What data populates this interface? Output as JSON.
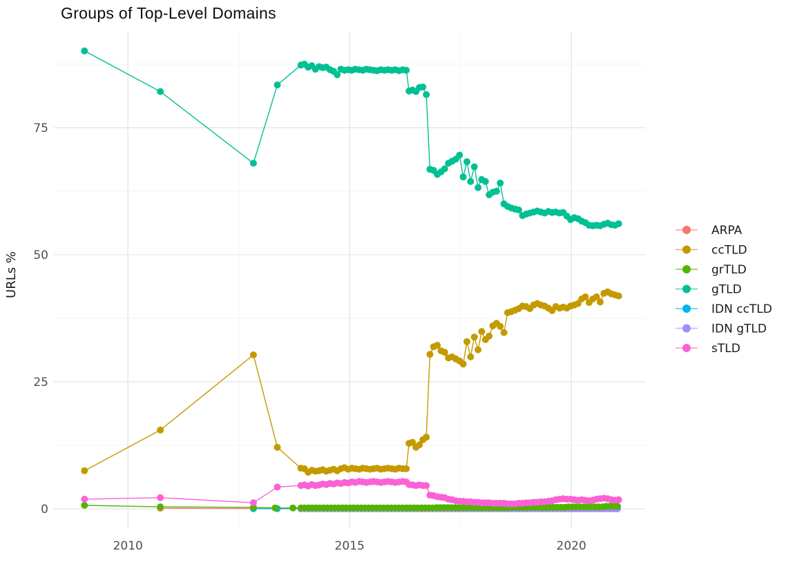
{
  "chart_data": {
    "type": "line",
    "title": "Groups of Top-Level Domains",
    "xlabel": "",
    "ylabel": "URLs %",
    "legend_position": "right",
    "grid": {
      "major_color": "#E3E3E3",
      "minor_color": "#EFEFEF",
      "background": "#FFFFFF"
    },
    "xlim": [
      2008.33,
      2021.68
    ],
    "ylim": [
      -3.8,
      94
    ],
    "x_ticks": [
      {
        "v": 2010,
        "label": "2010"
      },
      {
        "v": 2015,
        "label": "2015"
      },
      {
        "v": 2020,
        "label": "2020"
      }
    ],
    "x_minor": [
      2012.5,
      2017.5
    ],
    "y_ticks": [
      {
        "v": 0,
        "label": "0"
      },
      {
        "v": 25,
        "label": "25"
      },
      {
        "v": 50,
        "label": "50"
      },
      {
        "v": 75,
        "label": "75"
      }
    ],
    "y_minor": [
      12.5,
      37.5,
      62.5,
      87.5
    ],
    "draw_order": [
      "ARPA",
      "IDN ccTLD",
      "IDN gTLD",
      "grTLD",
      "sTLD",
      "ccTLD",
      "gTLD"
    ],
    "series": [
      {
        "name": "ARPA",
        "color": "#F8766D",
        "segments": [
          {
            "points": [
              [
                2010.73,
                0.12
              ],
              [
                2012.83,
                0.06
              ]
            ]
          },
          {
            "x0": 2013.9,
            "dx": 0.34,
            "n": 22,
            "const": 0.03
          }
        ]
      },
      {
        "name": "ccTLD",
        "color": "#C49A00",
        "segments": [
          {
            "points": [
              [
                2009.02,
                7.5
              ],
              [
                2010.73,
                15.5
              ],
              [
                2012.83,
                30.3
              ],
              [
                2013.37,
                12.1
              ]
            ]
          },
          {
            "x0": 2013.9,
            "dx": 0.082,
            "n": 30,
            "values": [
              8.0,
              7.9,
              7.2,
              7.6,
              7.4,
              7.5,
              7.7,
              7.4,
              7.6,
              7.8,
              7.5,
              7.9,
              8.1,
              7.8,
              8.0,
              7.9,
              7.8,
              8.0,
              7.9,
              7.8,
              7.9,
              8.0,
              7.8,
              7.9,
              8.0,
              7.9,
              7.8,
              8.0,
              7.9,
              7.9
            ]
          },
          {
            "x0": 2016.34,
            "dx": 0.078,
            "n": 6,
            "values": [
              12.9,
              13.1,
              12.1,
              12.6,
              13.6,
              14.1
            ]
          },
          {
            "x0": 2016.81,
            "dx": 0.0835,
            "n": 52,
            "values": [
              30.4,
              31.9,
              32.2,
              31.1,
              30.8,
              29.7,
              29.9,
              29.5,
              29.1,
              28.5,
              32.9,
              29.9,
              33.8,
              31.3,
              34.9,
              33.3,
              34.0,
              36.0,
              36.5,
              35.9,
              34.7,
              38.6,
              38.8,
              39.1,
              39.4,
              39.9,
              39.8,
              39.4,
              40.1,
              40.4,
              40.1,
              39.9,
              39.5,
              39.0,
              39.8,
              39.5,
              39.7,
              39.5,
              39.9,
              40.1,
              40.4,
              41.3,
              41.7,
              40.6,
              41.3,
              41.7,
              40.7,
              42.4,
              42.7,
              42.3,
              42.1,
              41.9
            ]
          }
        ]
      },
      {
        "name": "grTLD",
        "color": "#53B400",
        "segments": [
          {
            "points": [
              [
                2009.02,
                0.7
              ],
              [
                2010.73,
                0.4
              ],
              [
                2012.83,
                0.3
              ],
              [
                2013.32,
                0.18
              ],
              [
                2013.72,
                0.18
              ]
            ]
          },
          {
            "x0": 2013.9,
            "dx": 0.085,
            "n": 85,
            "values": [
              0.2,
              0.2,
              0.2,
              0.2,
              0.2,
              0.2,
              0.2,
              0.2,
              0.2,
              0.2,
              0.2,
              0.2,
              0.2,
              0.2,
              0.2,
              0.2,
              0.2,
              0.2,
              0.2,
              0.2,
              0.2,
              0.2,
              0.2,
              0.2,
              0.2,
              0.2,
              0.2,
              0.2,
              0.2,
              0.2,
              0.2,
              0.2,
              0.2,
              0.2,
              0.2,
              0.2,
              0.25,
              0.25,
              0.25,
              0.25,
              0.25,
              0.25,
              0.25,
              0.25,
              0.25,
              0.25,
              0.25,
              0.25,
              0.25,
              0.25,
              0.25,
              0.25,
              0.25,
              0.25,
              0.25,
              0.25,
              0.3,
              0.3,
              0.3,
              0.3,
              0.3,
              0.3,
              0.3,
              0.3,
              0.3,
              0.3,
              0.3,
              0.3,
              0.3,
              0.3,
              0.3,
              0.4,
              0.4,
              0.4,
              0.4,
              0.4,
              0.4,
              0.4,
              0.4,
              0.4,
              0.4,
              0.5,
              0.5,
              0.5,
              0.5
            ]
          }
        ]
      },
      {
        "name": "gTLD",
        "color": "#00C094",
        "segments": [
          {
            "points": [
              [
                2009.02,
                90.1
              ],
              [
                2010.73,
                82.1
              ],
              [
                2012.83,
                68.0
              ],
              [
                2013.37,
                83.4
              ]
            ]
          },
          {
            "x0": 2013.9,
            "dx": 0.082,
            "n": 30,
            "values": [
              87.3,
              87.5,
              86.9,
              87.2,
              86.5,
              87.0,
              86.8,
              86.9,
              86.4,
              86.1,
              85.4,
              86.5,
              86.3,
              86.4,
              86.3,
              86.5,
              86.4,
              86.3,
              86.5,
              86.4,
              86.3,
              86.2,
              86.4,
              86.3,
              86.4,
              86.3,
              86.4,
              86.2,
              86.4,
              86.3
            ]
          },
          {
            "x0": 2016.34,
            "dx": 0.078,
            "n": 6,
            "values": [
              82.2,
              82.4,
              82.1,
              82.9,
              83.0,
              81.5
            ]
          },
          {
            "x0": 2016.81,
            "dx": 0.0835,
            "n": 52,
            "values": [
              66.8,
              66.6,
              65.8,
              66.3,
              66.9,
              68.0,
              68.4,
              68.8,
              69.6,
              65.3,
              68.3,
              64.4,
              67.3,
              63.2,
              64.8,
              64.4,
              61.8,
              62.3,
              62.5,
              64.1,
              60.0,
              59.5,
              59.2,
              59.0,
              58.8,
              57.7,
              58.0,
              58.2,
              58.4,
              58.6,
              58.4,
              58.2,
              58.5,
              58.3,
              58.4,
              58.2,
              58.3,
              57.6,
              56.9,
              57.3,
              57.1,
              56.6,
              56.3,
              55.8,
              55.7,
              55.8,
              55.7,
              56.0,
              56.2,
              55.9,
              55.8,
              56.1
            ]
          }
        ]
      },
      {
        "name": "IDN ccTLD",
        "color": "#00B6EB",
        "segments": [
          {
            "points": [
              [
                2012.83,
                0.05
              ],
              [
                2013.37,
                0.05
              ]
            ]
          },
          {
            "x0": 2013.9,
            "dx": 0.17,
            "n": 43,
            "const": 0.05
          }
        ]
      },
      {
        "name": "IDN gTLD",
        "color": "#A58AFF",
        "segments": [
          {
            "x0": 2013.9,
            "dx": 0.085,
            "n": 85,
            "const": 0.0
          }
        ]
      },
      {
        "name": "sTLD",
        "color": "#FB61D7",
        "segments": [
          {
            "points": [
              [
                2009.02,
                1.9
              ],
              [
                2010.73,
                2.2
              ],
              [
                2012.83,
                1.2
              ],
              [
                2013.37,
                4.3
              ]
            ]
          },
          {
            "x0": 2013.9,
            "dx": 0.082,
            "n": 30,
            "values": [
              4.6,
              4.7,
              4.5,
              4.8,
              4.6,
              4.7,
              4.9,
              4.8,
              5.0,
              4.9,
              5.1,
              5.0,
              5.2,
              5.1,
              5.3,
              5.2,
              5.4,
              5.3,
              5.2,
              5.3,
              5.4,
              5.3,
              5.2,
              5.3,
              5.4,
              5.3,
              5.2,
              5.3,
              5.4,
              5.3
            ]
          },
          {
            "x0": 2016.34,
            "dx": 0.078,
            "n": 6,
            "values": [
              4.8,
              4.7,
              4.6,
              4.7,
              4.6,
              4.6
            ]
          },
          {
            "x0": 2016.81,
            "dx": 0.0835,
            "n": 52,
            "values": [
              2.7,
              2.6,
              2.4,
              2.3,
              2.2,
              1.9,
              1.8,
              1.6,
              1.5,
              1.5,
              1.4,
              1.4,
              1.3,
              1.3,
              1.2,
              1.2,
              1.2,
              1.1,
              1.1,
              1.1,
              1.1,
              1.0,
              1.0,
              1.0,
              1.1,
              1.1,
              1.2,
              1.2,
              1.3,
              1.3,
              1.4,
              1.4,
              1.5,
              1.6,
              1.8,
              1.9,
              2.0,
              1.9,
              1.9,
              1.8,
              1.7,
              1.8,
              1.7,
              1.6,
              1.7,
              1.9,
              2.0,
              2.1,
              2.0,
              1.8,
              1.7,
              1.8
            ]
          }
        ]
      }
    ]
  }
}
